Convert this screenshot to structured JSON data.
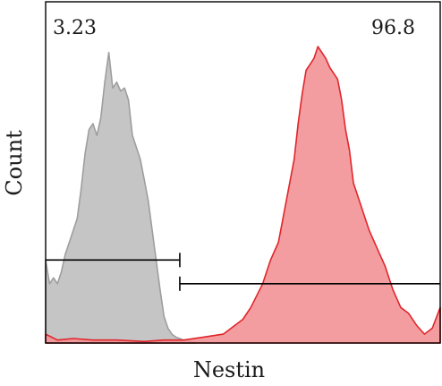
{
  "chart_data": {
    "type": "area",
    "title": "",
    "xlabel": "Nestin",
    "ylabel": "Count",
    "x_scale": "log",
    "xlim": [
      0,
      100
    ],
    "ylim": [
      0,
      100
    ],
    "gate_labels": [
      "3.23",
      "96.8"
    ],
    "gates": [
      {
        "label": "3.23",
        "range": [
          0,
          34
        ],
        "y": 28
      },
      {
        "label": "96.8",
        "range": [
          34,
          100
        ],
        "y": 20
      }
    ],
    "series": [
      {
        "color": "#9e9e9e",
        "fill": "#bfbfbf",
        "x": [
          0,
          1,
          2,
          3,
          4,
          5,
          6,
          7,
          8,
          9,
          10,
          11,
          12,
          13,
          14,
          15,
          16,
          17,
          18,
          19,
          20,
          21,
          22,
          23,
          24,
          25,
          26,
          27,
          28,
          29,
          30,
          31,
          32,
          33,
          34,
          35,
          36,
          37,
          38
        ],
        "y": [
          28,
          20,
          22,
          20,
          24,
          30,
          34,
          38,
          42,
          52,
          64,
          72,
          74,
          70,
          76,
          88,
          98,
          86,
          88,
          85,
          86,
          82,
          70,
          66,
          62,
          55,
          48,
          38,
          28,
          18,
          9,
          5,
          3,
          2,
          1.5,
          1,
          0.8,
          0.5,
          0.2
        ]
      },
      {
        "color": "#e0262b",
        "fill": "#f29296",
        "x": [
          0,
          3,
          7,
          12,
          18,
          25,
          30,
          35,
          40,
          45,
          50,
          52,
          55,
          57,
          59,
          61,
          63,
          64,
          65,
          66,
          67,
          68,
          69,
          70,
          71,
          72,
          73,
          74,
          75,
          76,
          77,
          78,
          80,
          82,
          84,
          86,
          88,
          90,
          92,
          94,
          96,
          98,
          100
        ],
        "y": [
          3,
          1,
          1.5,
          1,
          1,
          0.5,
          1,
          1,
          2,
          3,
          8,
          12,
          20,
          28,
          34,
          48,
          62,
          74,
          84,
          92,
          94,
          96,
          100,
          98,
          96,
          93,
          91,
          89,
          82,
          72,
          65,
          54,
          46,
          38,
          32,
          26,
          18,
          12,
          10,
          6,
          3,
          5,
          12
        ]
      }
    ]
  }
}
